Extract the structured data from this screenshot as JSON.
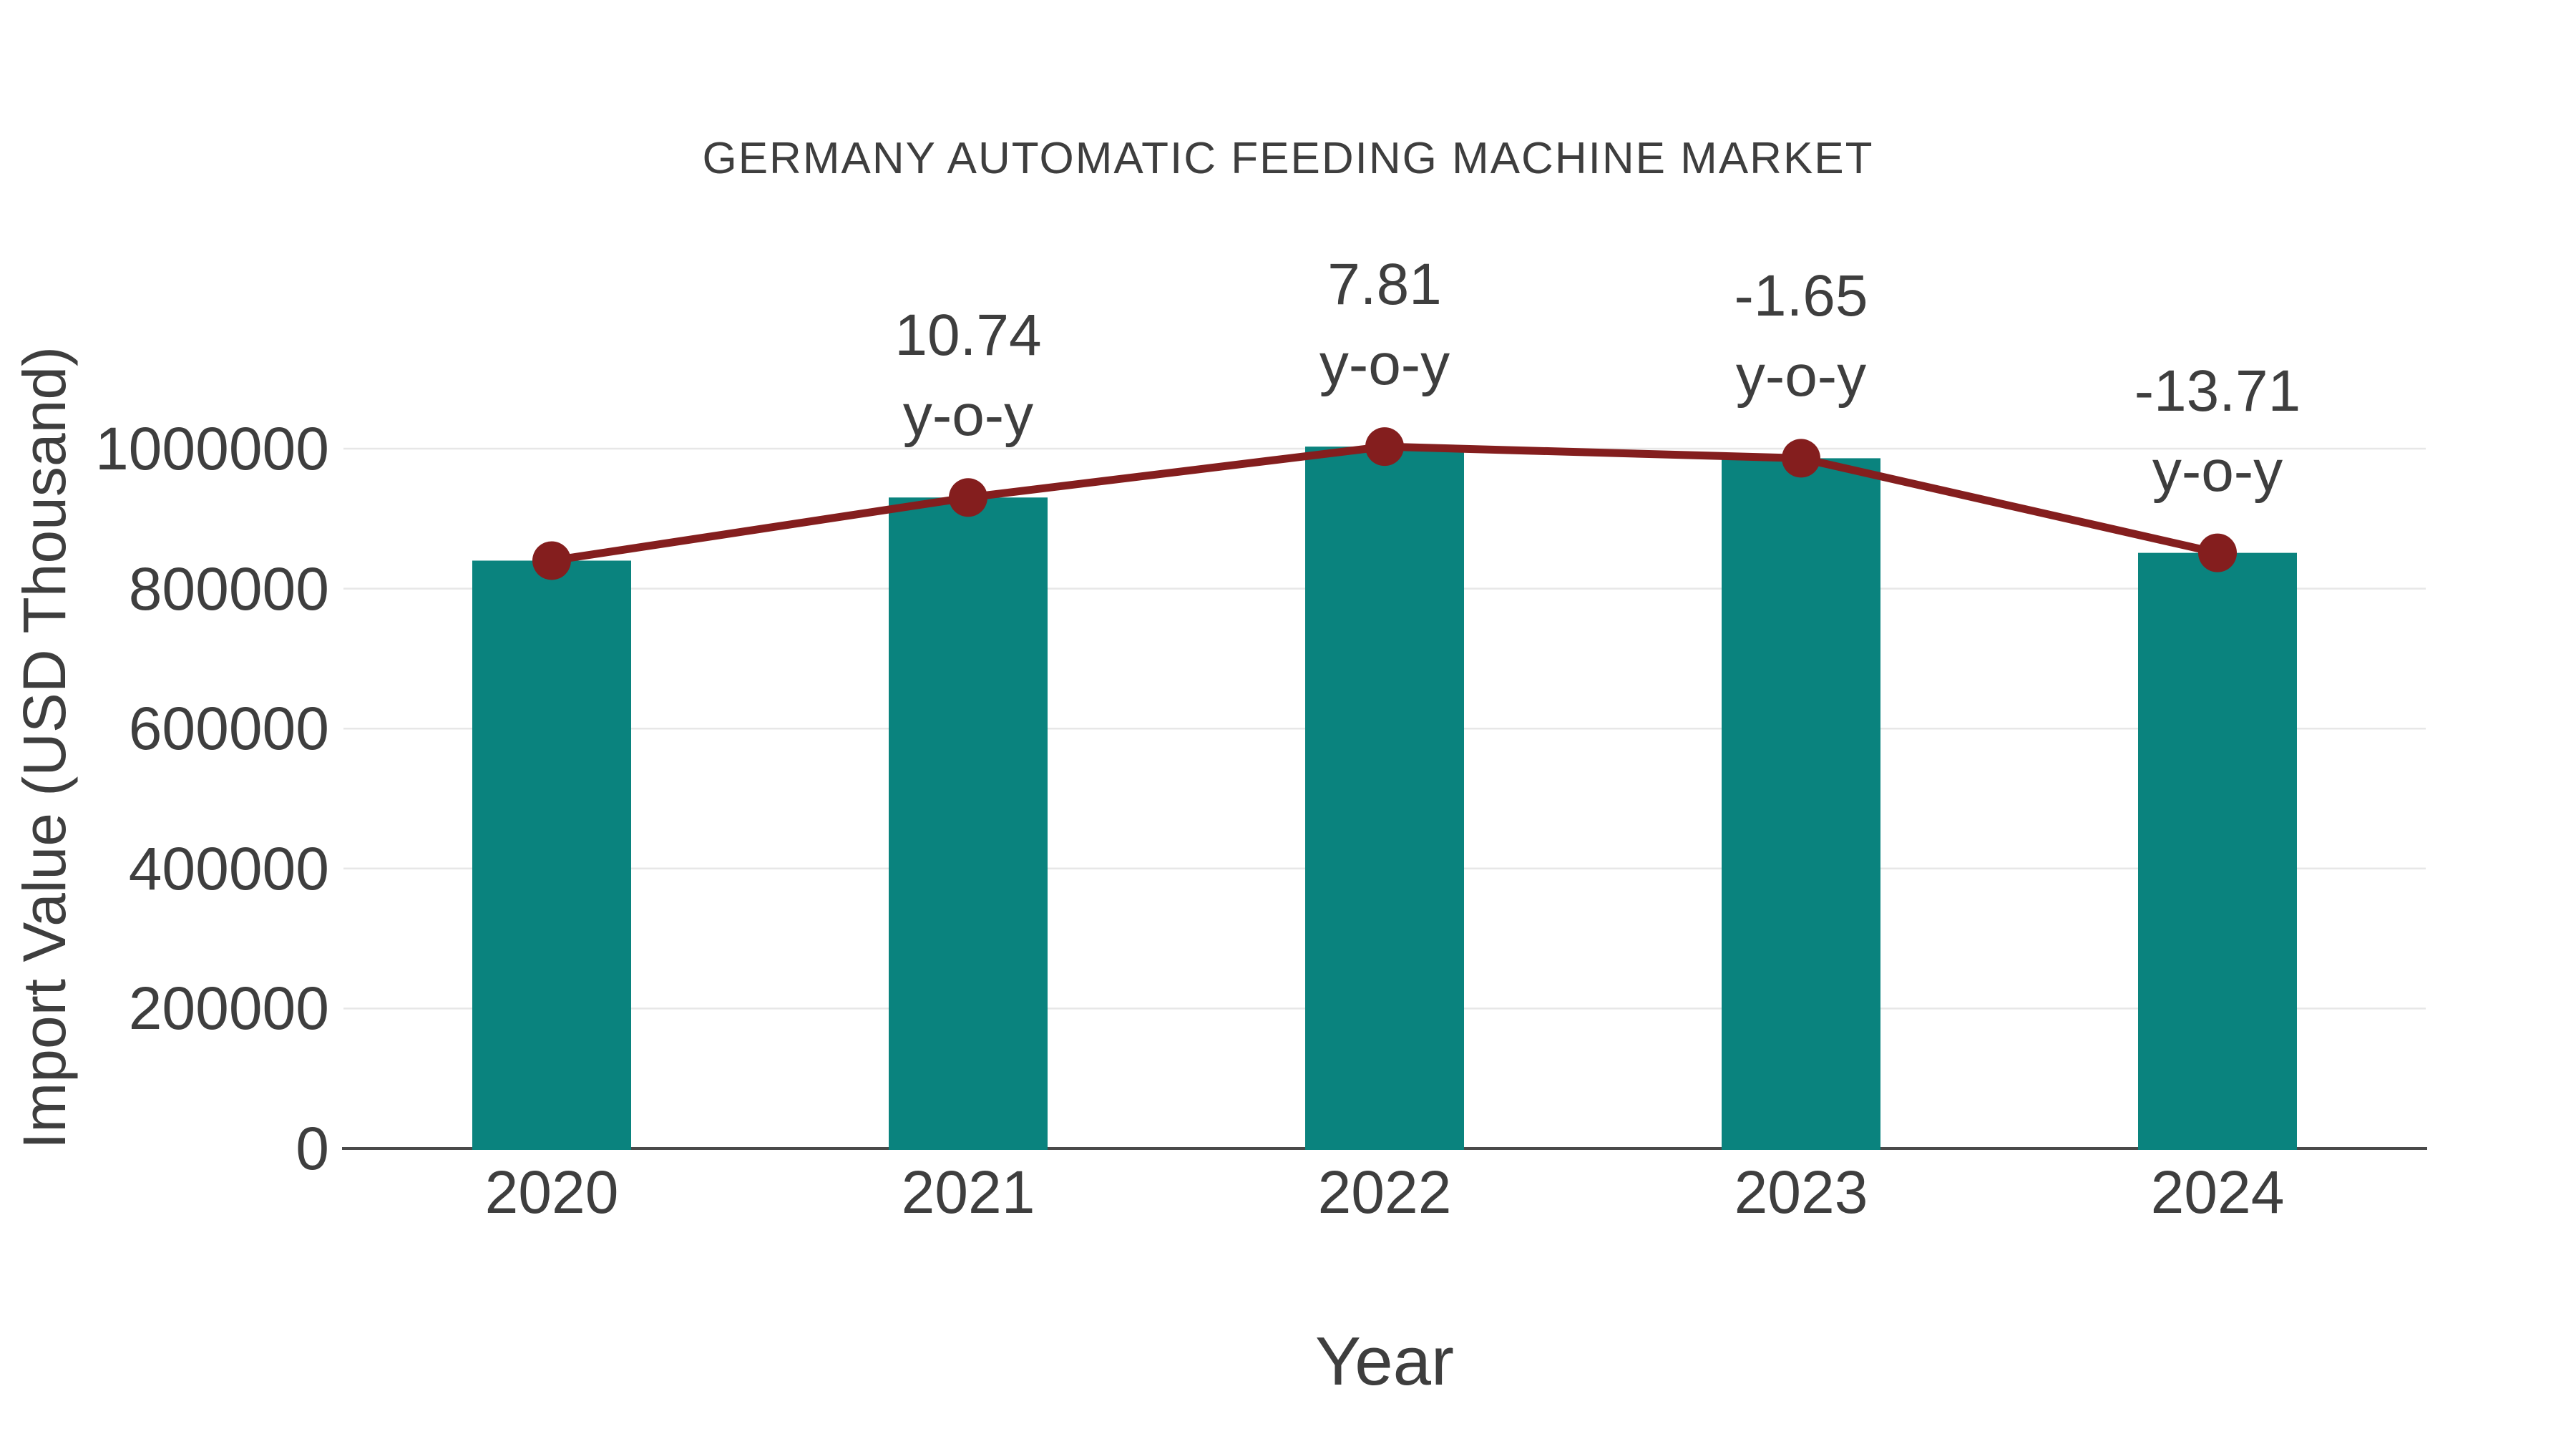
{
  "title": "GERMANY AUTOMATIC FEEDING MACHINE MARKET",
  "colors": {
    "bar": "#0A837E",
    "line": "#841E1E",
    "marker": "#841E1E",
    "text": "#3E3E3E",
    "grid": "#E7E7E7",
    "axis": "#4A4A4A",
    "background": "#FFFFFF"
  },
  "chart_data": {
    "type": "bar",
    "title": "GERMANY AUTOMATIC FEEDING MACHINE MARKET",
    "xlabel": "Year",
    "ylabel": "Import Value (USD Thousand)",
    "categories": [
      "2020",
      "2021",
      "2022",
      "2023",
      "2024"
    ],
    "series": [
      {
        "name": "Import Value (USD Thousand) bars",
        "type": "bar",
        "values": [
          840000,
          930200,
          1002900,
          986300,
          851100
        ]
      },
      {
        "name": "Import Value trend line with markers",
        "type": "line",
        "values": [
          840000,
          930200,
          1002900,
          986300,
          851100
        ]
      }
    ],
    "yoy_growth_pct": [
      null,
      10.74,
      7.81,
      -1.65,
      -13.71
    ],
    "annotations": [
      {
        "category": "2021",
        "lines": [
          "10.74",
          "y-o-y"
        ]
      },
      {
        "category": "2022",
        "lines": [
          "7.81",
          "y-o-y"
        ]
      },
      {
        "category": "2023",
        "lines": [
          "-1.65",
          "y-o-y"
        ]
      },
      {
        "category": "2024",
        "lines": [
          "-13.71",
          "y-o-y"
        ]
      }
    ],
    "yticks": [
      0,
      200000,
      400000,
      600000,
      800000,
      1000000
    ],
    "ylim": [
      0,
      1070000
    ],
    "grid": "horizontal-light-gray",
    "legend": "none"
  }
}
